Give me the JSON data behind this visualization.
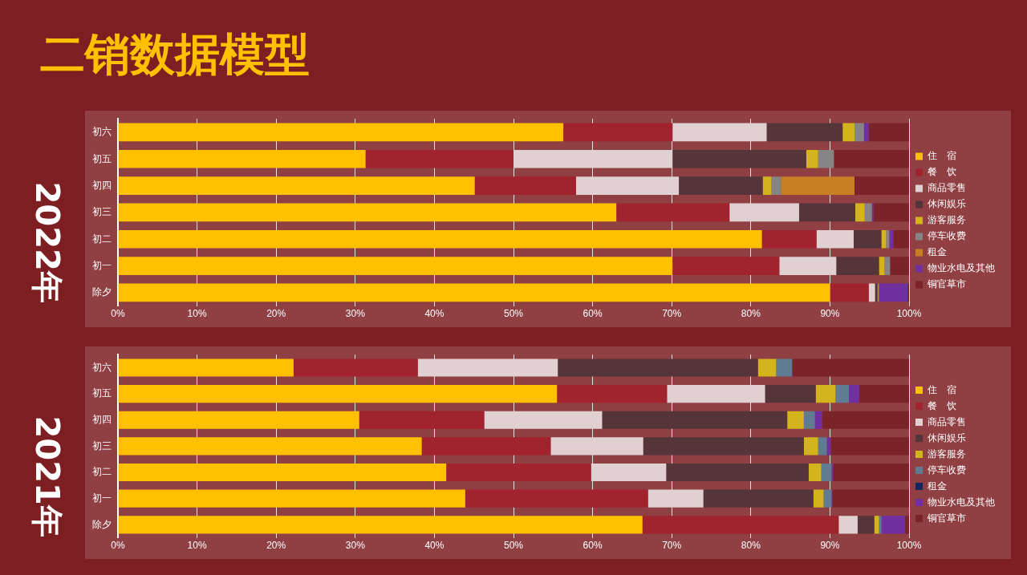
{
  "chart_data": [
    {
      "type": "bar",
      "title": "二销数据模型",
      "subtitle": "2022年",
      "orientation": "horizontal",
      "stacked": true,
      "grid": "x",
      "legend": "right",
      "categories": [
        "初六",
        "初五",
        "初四",
        "初三",
        "初二",
        "初一",
        "除夕"
      ],
      "xlim": [
        0,
        100
      ],
      "xticks": [
        {
          "value": 0,
          "label": "0%"
        },
        {
          "value": 10,
          "label": "10%"
        },
        {
          "value": 20,
          "label": "20%"
        },
        {
          "value": 30,
          "label": "30%"
        },
        {
          "value": 40,
          "label": "40%"
        },
        {
          "value": 50,
          "label": "50%"
        },
        {
          "value": 60,
          "label": "60%"
        },
        {
          "value": 70,
          "label": "70%"
        },
        {
          "value": 80,
          "label": "80%"
        },
        {
          "value": 90,
          "label": "90%"
        },
        {
          "value": 100,
          "label": "100%"
        }
      ],
      "series": [
        {
          "name": "住　宿",
          "color": "#ffc000",
          "values": [
            56.3,
            31.3,
            45.1,
            63.0,
            81.4,
            70.1,
            90.0
          ]
        },
        {
          "name": "餐　饮",
          "color": "#a0232d",
          "values": [
            13.8,
            18.7,
            12.8,
            14.3,
            6.9,
            13.5,
            4.9
          ]
        },
        {
          "name": "商品零售",
          "color": "#e0d0d2",
          "values": [
            11.9,
            20.1,
            13.0,
            8.8,
            4.7,
            7.2,
            0.8
          ]
        },
        {
          "name": "休闲娱乐",
          "color": "#55353a",
          "values": [
            9.6,
            16.9,
            10.6,
            7.1,
            3.5,
            5.4,
            0.3
          ]
        },
        {
          "name": "游客服务",
          "color": "#d4b41c",
          "values": [
            1.5,
            1.5,
            1.1,
            1.2,
            0.6,
            0.7,
            0.1
          ]
        },
        {
          "name": "停车收费",
          "color": "#858585",
          "values": [
            1.2,
            2.0,
            1.2,
            0.9,
            0.4,
            0.7,
            0.1
          ]
        },
        {
          "name": "租金",
          "color": "#c77f25",
          "values": [
            0,
            0,
            9.3,
            0,
            0,
            0,
            0
          ]
        },
        {
          "name": "物业水电及其他",
          "color": "#7030a0",
          "values": [
            0.6,
            0,
            0,
            0.2,
            0.5,
            0,
            3.6
          ]
        },
        {
          "name": "铜官草市",
          "color": "#7a2329",
          "values": [
            5.1,
            9.5,
            6.9,
            4.5,
            2.0,
            2.4,
            0.2
          ]
        }
      ]
    },
    {
      "type": "bar",
      "subtitle": "2021年",
      "orientation": "horizontal",
      "stacked": true,
      "grid": "x",
      "legend": "right",
      "categories": [
        "初六",
        "初五",
        "初四",
        "初三",
        "初二",
        "初一",
        "除夕"
      ],
      "xlim": [
        0,
        100
      ],
      "xticks": [
        {
          "value": 0,
          "label": "0%"
        },
        {
          "value": 10,
          "label": "10%"
        },
        {
          "value": 20,
          "label": "20%"
        },
        {
          "value": 30,
          "label": "30%"
        },
        {
          "value": 40,
          "label": "40%"
        },
        {
          "value": 50,
          "label": "50%"
        },
        {
          "value": 60,
          "label": "60%"
        },
        {
          "value": 70,
          "label": "70%"
        },
        {
          "value": 80,
          "label": "80%"
        },
        {
          "value": 90,
          "label": "90%"
        },
        {
          "value": 100,
          "label": "100%"
        }
      ],
      "series": [
        {
          "name": "住　宿",
          "color": "#ffc000",
          "values": [
            22.2,
            55.5,
            30.5,
            38.4,
            41.5,
            43.9,
            66.3
          ]
        },
        {
          "name": "餐　饮",
          "color": "#a0232d",
          "values": [
            15.7,
            13.9,
            15.8,
            16.3,
            18.3,
            23.1,
            24.8
          ]
        },
        {
          "name": "商品零售",
          "color": "#e0d0d2",
          "values": [
            17.7,
            12.4,
            14.9,
            11.7,
            9.5,
            7.0,
            2.4
          ]
        },
        {
          "name": "休闲娱乐",
          "color": "#55353a",
          "values": [
            25.3,
            6.4,
            23.4,
            20.3,
            18.0,
            13.9,
            2.1
          ]
        },
        {
          "name": "游客服务",
          "color": "#d4b41c",
          "values": [
            2.3,
            2.5,
            2.1,
            1.8,
            1.6,
            1.3,
            0.6
          ]
        },
        {
          "name": "停车收费",
          "color": "#5f7c92",
          "values": [
            2.0,
            1.7,
            1.4,
            1.1,
            1.3,
            1.0,
            0.3
          ]
        },
        {
          "name": "租金",
          "color": "#14265e",
          "values": [
            0,
            0,
            0,
            0,
            0,
            0,
            0
          ]
        },
        {
          "name": "物业水电及其他",
          "color": "#7030a0",
          "values": [
            0.1,
            1.3,
            0.9,
            0.5,
            0.2,
            0.1,
            3.0
          ]
        },
        {
          "name": "铜官草市",
          "color": "#7a2329",
          "values": [
            14.7,
            6.3,
            11.0,
            9.9,
            9.6,
            9.7,
            0.5
          ]
        }
      ]
    }
  ]
}
